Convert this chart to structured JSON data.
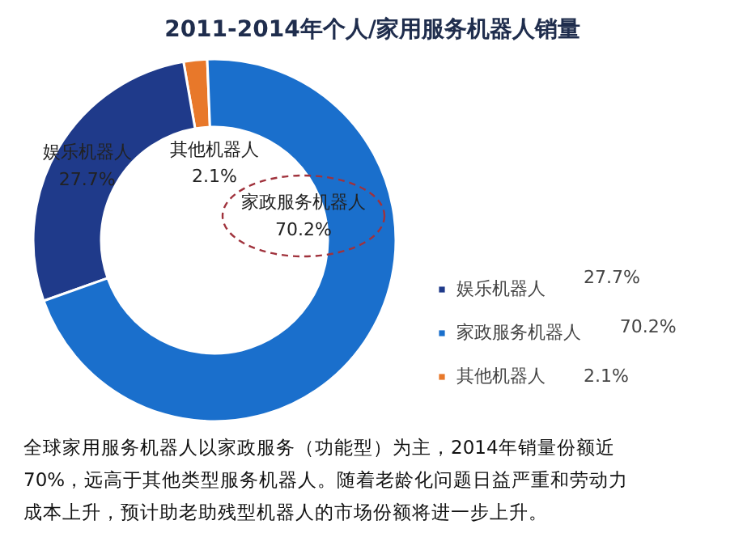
{
  "chart_data": {
    "type": "donut",
    "title": "2011-2014年个人/家用服务机器人销量",
    "categories": [
      "其他机器人",
      "娱乐机器人",
      "家政服务机器人"
    ],
    "values": [
      2.1,
      27.7,
      70.2
    ],
    "colors": [
      "#e8782a",
      "#1f3a8a",
      "#1a6fcc"
    ],
    "value_labels": [
      "2.1%",
      "27.7%",
      "70.2%"
    ],
    "legend": "right",
    "annotations": [
      "全球家用服务机器人以家政服务（功能型）为主，2014年销量份额近70%，远高于其他类型服务机器人。随着老龄化问题日益严重和劳动力成本上升，预计助老助残型机器人的市场份额将进一步上升。"
    ]
  }
}
